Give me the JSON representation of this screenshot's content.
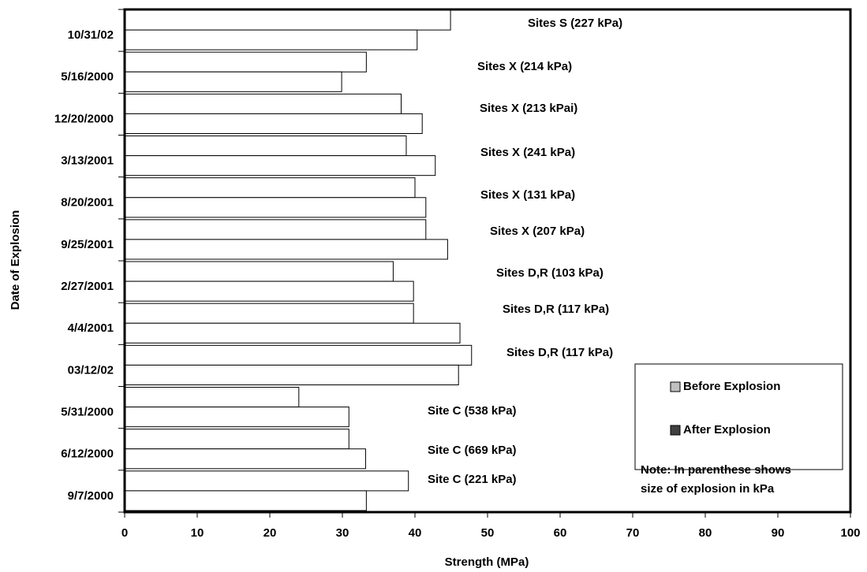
{
  "chart_data": {
    "type": "hbar",
    "categories": [
      "10/31/02",
      "5/16/2000",
      "12/20/2000",
      "3/13/2001",
      "8/20/2001",
      "9/25/2001",
      "2/27/2001",
      "4/4/2001",
      "03/12/02",
      "5/31/2000",
      "6/12/2000",
      "9/7/2000"
    ],
    "series": [
      {
        "name": "Before Explosion",
        "color": "#c0c0c0",
        "values": [
          44.9,
          33.3,
          38.1,
          38.8,
          40.0,
          41.5,
          37.0,
          39.8,
          47.8,
          24.0,
          30.9,
          39.1
        ]
      },
      {
        "name": "After Explosion",
        "color": "#404040",
        "values": [
          40.3,
          29.9,
          41.0,
          42.8,
          41.5,
          44.5,
          39.8,
          46.2,
          46.0,
          30.9,
          33.2,
          33.3
        ]
      }
    ],
    "bar_fill": "#ffffff",
    "xlabel": "Strength (MPa)",
    "ylabel": "Date of Explosion",
    "xlim": [
      0,
      100
    ],
    "xticks": [
      0,
      10,
      20,
      30,
      40,
      50,
      60,
      70,
      80,
      90,
      100
    ],
    "grid": false,
    "legend": "lower-right",
    "annotations": [
      "Sites S (227 kPa)",
      "Sites X (214 kPa)",
      "Sites X (213 kPai)",
      "Sites X (241 kPa)",
      "Sites X (131 kPa)",
      "Sites X (207 kPa)",
      "Sites D,R (103 kPa)",
      "Sites D,R (117 kPa)",
      "Sites D,R (117 kPa)",
      "Site C (538 kPa)",
      "Site C (669 kPa)",
      "Site C (221 kPa)"
    ],
    "note": [
      "Note: In parenthese shows",
      "size of explosion in kPa"
    ]
  }
}
